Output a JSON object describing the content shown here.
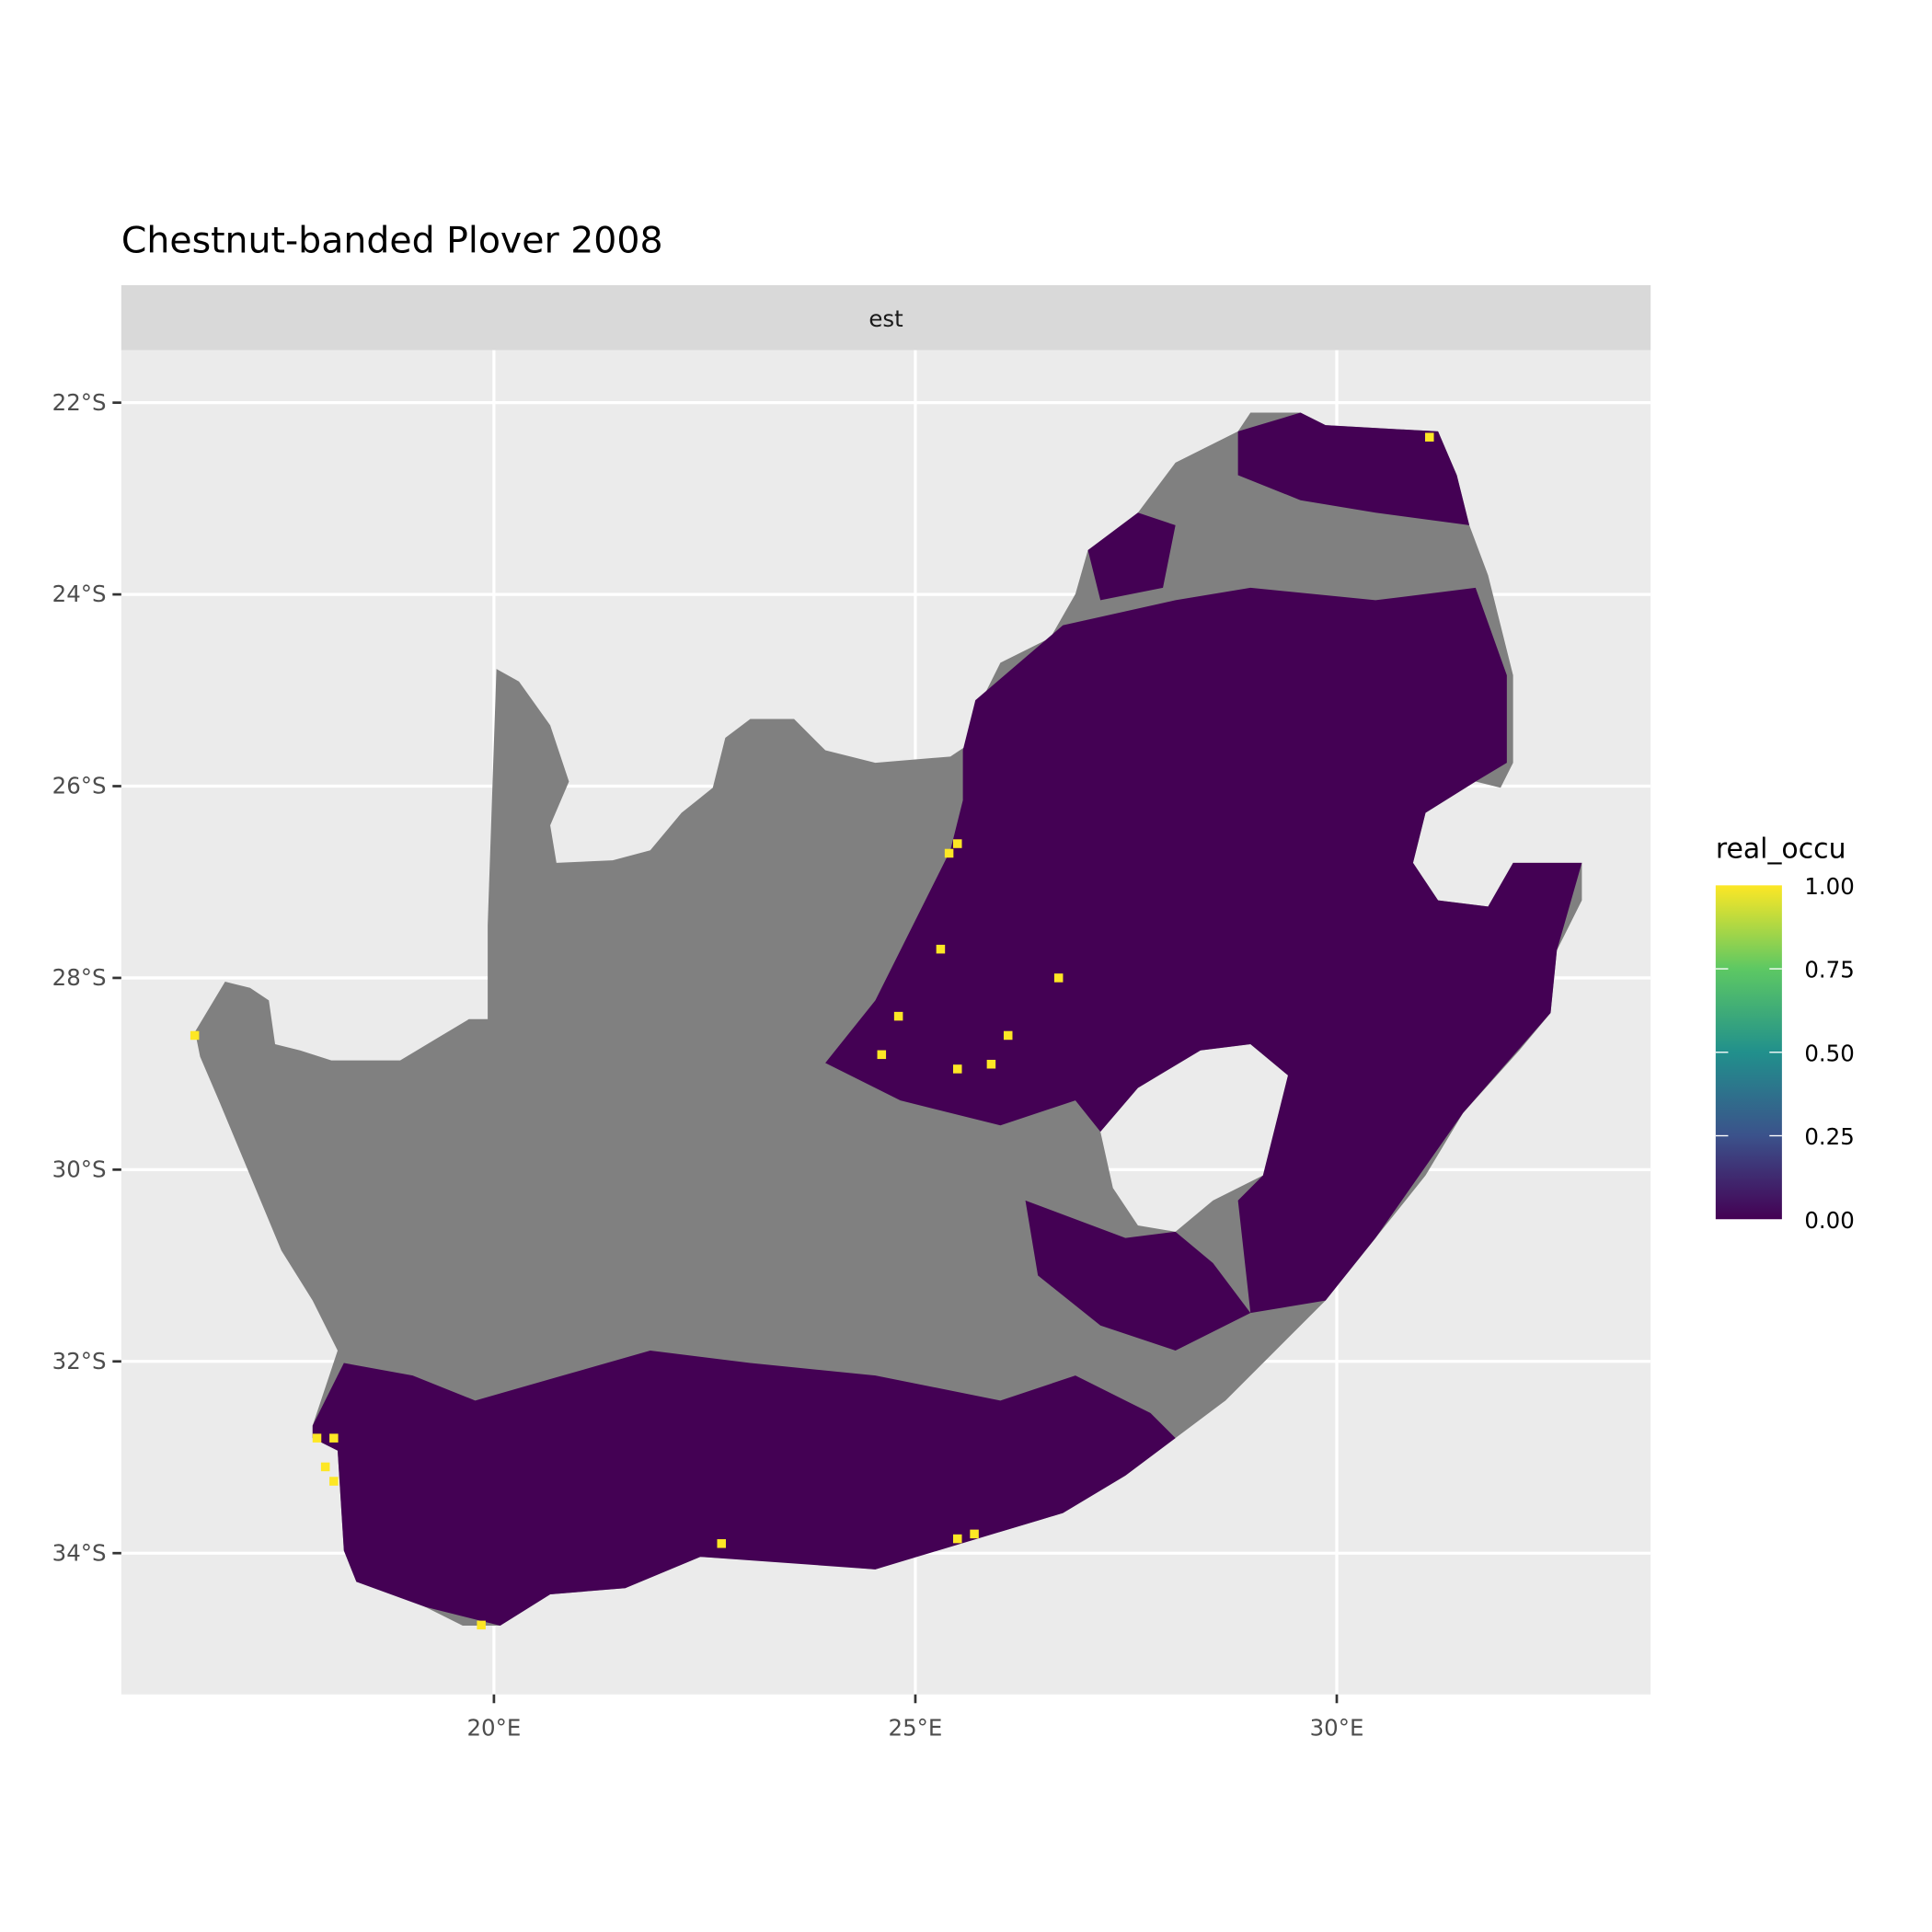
{
  "chart_data": {
    "type": "heatmap",
    "title": "Chestnut-banded Plover 2008",
    "facet_label": "est",
    "xlabel": "",
    "ylabel": "",
    "x_ticks": [
      {
        "value": 20,
        "label": "20°E"
      },
      {
        "value": 25,
        "label": "25°E"
      },
      {
        "value": 30,
        "label": "30°E"
      }
    ],
    "y_ticks": [
      {
        "value": -22,
        "label": "22°S"
      },
      {
        "value": -24,
        "label": "24°S"
      },
      {
        "value": -26,
        "label": "26°S"
      },
      {
        "value": -28,
        "label": "28°S"
      },
      {
        "value": -30,
        "label": "30°S"
      },
      {
        "value": -32,
        "label": "32°S"
      },
      {
        "value": -34,
        "label": "34°S"
      }
    ],
    "xlim": [
      15.6,
      33.7
    ],
    "ylim": [
      -35.4,
      -21.45
    ],
    "grid": true,
    "legend": {
      "title": "real_occu",
      "position": "right",
      "palette": "viridis",
      "colors": [
        "#440154",
        "#3b528b",
        "#21908c",
        "#5dc863",
        "#fde725"
      ],
      "breaks": [
        "0.00",
        "0.25",
        "0.50",
        "0.75",
        "1.00"
      ],
      "range": [
        0,
        1
      ]
    },
    "na_color": "#808080",
    "mostly_value": 0,
    "high_cells": [
      {
        "lon": 31.1,
        "lat": -22.36,
        "value": 1
      },
      {
        "lon": 25.5,
        "lat": -26.6,
        "value": 1
      },
      {
        "lon": 25.4,
        "lat": -26.7,
        "value": 1
      },
      {
        "lon": 25.3,
        "lat": -27.7,
        "value": 1
      },
      {
        "lon": 26.7,
        "lat": -28.0,
        "value": 1
      },
      {
        "lon": 24.8,
        "lat": -28.4,
        "value": 1
      },
      {
        "lon": 24.6,
        "lat": -28.8,
        "value": 1
      },
      {
        "lon": 26.1,
        "lat": -28.6,
        "value": 1
      },
      {
        "lon": 25.9,
        "lat": -28.9,
        "value": 1
      },
      {
        "lon": 25.5,
        "lat": -28.95,
        "value": 1
      },
      {
        "lon": 16.45,
        "lat": -28.6,
        "value": 1
      },
      {
        "lon": 17.9,
        "lat": -32.8,
        "value": 1
      },
      {
        "lon": 18.1,
        "lat": -32.8,
        "value": 1
      },
      {
        "lon": 18.0,
        "lat": -33.1,
        "value": 1
      },
      {
        "lon": 18.1,
        "lat": -33.25,
        "value": 1
      },
      {
        "lon": 22.7,
        "lat": -33.9,
        "value": 1
      },
      {
        "lon": 25.5,
        "lat": -33.85,
        "value": 1
      },
      {
        "lon": 25.7,
        "lat": -33.8,
        "value": 1
      },
      {
        "lon": 19.85,
        "lat": -34.75,
        "value": 1
      }
    ]
  }
}
